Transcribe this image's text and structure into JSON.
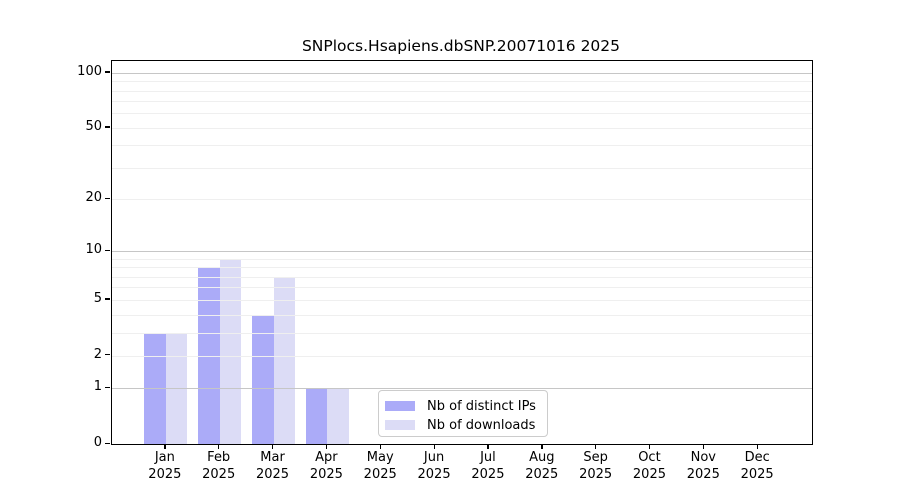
{
  "chart_data": {
    "type": "bar",
    "title": "SNPlocs.Hsapiens.dbSNP.20071016 2025",
    "categories": [
      "Jan",
      "Feb",
      "Mar",
      "Apr",
      "May",
      "Jun",
      "Jul",
      "Aug",
      "Sep",
      "Oct",
      "Nov",
      "Dec"
    ],
    "x_year_label": "2025",
    "series": [
      {
        "name": "Nb of distinct IPs",
        "color": "#ababf8",
        "values": [
          3,
          8,
          4,
          1,
          0,
          0,
          0,
          0,
          0,
          0,
          0,
          0
        ]
      },
      {
        "name": "Nb of downloads",
        "color": "#dcdcf6",
        "values": [
          3,
          9,
          7,
          1,
          0,
          0,
          0,
          0,
          0,
          0,
          0,
          0
        ]
      }
    ],
    "xlabel": "",
    "ylabel": "",
    "y_scale": "log1p",
    "ylim": [
      0,
      116
    ],
    "y_ticks": [
      0,
      1,
      2,
      5,
      10,
      20,
      50,
      100
    ],
    "y_major_gridlines": [
      1,
      10,
      100
    ],
    "y_minor_gridlines": [
      2,
      3,
      4,
      5,
      6,
      7,
      8,
      9,
      20,
      30,
      40,
      50,
      60,
      70,
      80,
      90
    ],
    "grid": "horizontal",
    "legend_position": "lower center"
  },
  "colors": {
    "distinct_ips_bar": "#ababf8",
    "downloads_bar": "#dcdcf6",
    "major_gridline": "#c6c6c6",
    "minor_gridline": "#efefef",
    "spine": "#000000",
    "legend_border": "#cccccc",
    "background": "#ffffff"
  }
}
